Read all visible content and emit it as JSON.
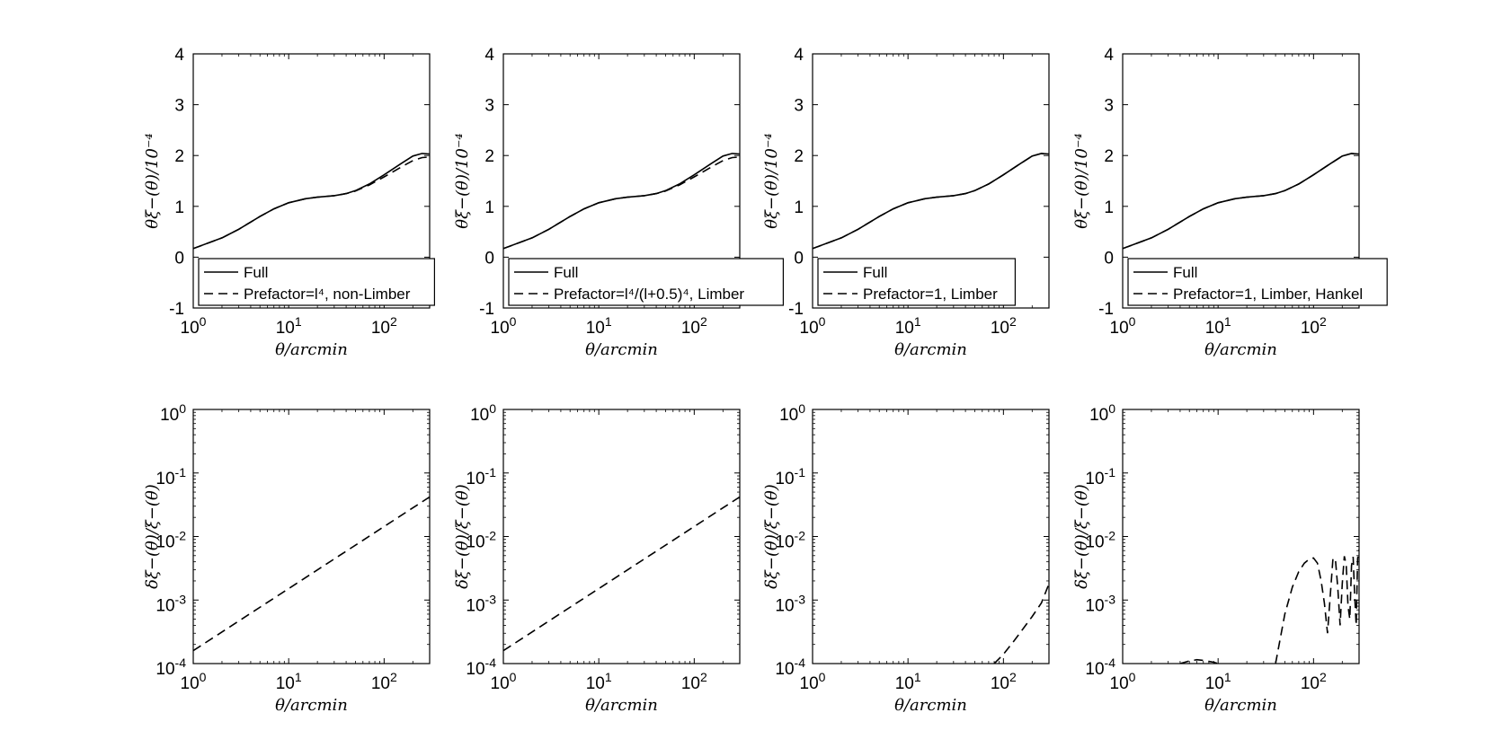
{
  "chart_data": [
    {
      "type": "line",
      "panel": "top-1",
      "xlabel": "θ/arcmin",
      "ylabel": "θξ−(θ)/10⁻⁴",
      "xscale": "log",
      "xlim": [
        1,
        300
      ],
      "ylim": [
        -1,
        4
      ],
      "x_ticks": [
        "10^0",
        "10^1",
        "10^2"
      ],
      "y_ticks": [
        "-1",
        "0",
        "1",
        "2",
        "3",
        "4"
      ],
      "legend_position": "bottom",
      "x": [
        1,
        2,
        3,
        5,
        7,
        10,
        15,
        20,
        30,
        40,
        50,
        70,
        100,
        150,
        200,
        250,
        300
      ],
      "series": [
        {
          "name": "Full",
          "style": "solid",
          "values": [
            0.17,
            0.38,
            0.55,
            0.8,
            0.95,
            1.07,
            1.15,
            1.18,
            1.21,
            1.25,
            1.31,
            1.44,
            1.62,
            1.84,
            1.99,
            2.04,
            2.03
          ]
        },
        {
          "name": "Prefactor=l⁴, non-Limber",
          "style": "dashed",
          "values": [
            0.17,
            0.38,
            0.55,
            0.8,
            0.95,
            1.07,
            1.15,
            1.18,
            1.21,
            1.25,
            1.3,
            1.42,
            1.58,
            1.77,
            1.9,
            1.96,
            1.97
          ]
        }
      ]
    },
    {
      "type": "line",
      "panel": "top-2",
      "xlabel": "θ/arcmin",
      "ylabel": "θξ−(θ)/10⁻⁴",
      "xscale": "log",
      "xlim": [
        1,
        300
      ],
      "ylim": [
        -1,
        4
      ],
      "x_ticks": [
        "10^0",
        "10^1",
        "10^2"
      ],
      "y_ticks": [
        "-1",
        "0",
        "1",
        "2",
        "3",
        "4"
      ],
      "legend_position": "bottom",
      "x": [
        1,
        2,
        3,
        5,
        7,
        10,
        15,
        20,
        30,
        40,
        50,
        70,
        100,
        150,
        200,
        250,
        300
      ],
      "series": [
        {
          "name": "Full",
          "style": "solid",
          "values": [
            0.17,
            0.38,
            0.55,
            0.8,
            0.95,
            1.07,
            1.15,
            1.18,
            1.21,
            1.25,
            1.31,
            1.44,
            1.62,
            1.84,
            1.99,
            2.04,
            2.03
          ]
        },
        {
          "name": "Prefactor=l⁴/(l+0.5)⁴, Limber",
          "style": "dashed",
          "values": [
            0.17,
            0.38,
            0.55,
            0.8,
            0.95,
            1.07,
            1.15,
            1.18,
            1.21,
            1.25,
            1.3,
            1.42,
            1.58,
            1.77,
            1.9,
            1.96,
            1.97
          ]
        }
      ]
    },
    {
      "type": "line",
      "panel": "top-3",
      "xlabel": "θ/arcmin",
      "ylabel": "θξ−(θ)/10⁻⁴",
      "xscale": "log",
      "xlim": [
        1,
        300
      ],
      "ylim": [
        -1,
        4
      ],
      "x_ticks": [
        "10^0",
        "10^1",
        "10^2"
      ],
      "y_ticks": [
        "-1",
        "0",
        "1",
        "2",
        "3",
        "4"
      ],
      "legend_position": "bottom",
      "x": [
        1,
        2,
        3,
        5,
        7,
        10,
        15,
        20,
        30,
        40,
        50,
        70,
        100,
        150,
        200,
        250,
        300
      ],
      "series": [
        {
          "name": "Full",
          "style": "solid",
          "values": [
            0.17,
            0.38,
            0.55,
            0.8,
            0.95,
            1.07,
            1.15,
            1.18,
            1.21,
            1.25,
            1.31,
            1.44,
            1.62,
            1.84,
            1.99,
            2.04,
            2.03
          ]
        },
        {
          "name": "Prefactor=1, Limber",
          "style": "dashed",
          "values": [
            0.17,
            0.38,
            0.55,
            0.8,
            0.95,
            1.07,
            1.15,
            1.18,
            1.21,
            1.25,
            1.31,
            1.44,
            1.62,
            1.84,
            1.99,
            2.04,
            2.02
          ]
        }
      ]
    },
    {
      "type": "line",
      "panel": "top-4",
      "xlabel": "θ/arcmin",
      "ylabel": "θξ−(θ)/10⁻⁴",
      "xscale": "log",
      "xlim": [
        1,
        300
      ],
      "ylim": [
        -1,
        4
      ],
      "x_ticks": [
        "10^0",
        "10^1",
        "10^2"
      ],
      "y_ticks": [
        "-1",
        "0",
        "1",
        "2",
        "3",
        "4"
      ],
      "legend_position": "bottom",
      "x": [
        1,
        2,
        3,
        5,
        7,
        10,
        15,
        20,
        30,
        40,
        50,
        70,
        100,
        150,
        200,
        250,
        300
      ],
      "series": [
        {
          "name": "Full",
          "style": "solid",
          "values": [
            0.17,
            0.38,
            0.55,
            0.8,
            0.95,
            1.07,
            1.15,
            1.18,
            1.21,
            1.25,
            1.31,
            1.44,
            1.62,
            1.84,
            1.99,
            2.04,
            2.03
          ]
        },
        {
          "name": "Prefactor=1, Limber, Hankel",
          "style": "dashed",
          "values": [
            0.17,
            0.38,
            0.55,
            0.8,
            0.95,
            1.07,
            1.15,
            1.18,
            1.21,
            1.25,
            1.31,
            1.44,
            1.62,
            1.84,
            1.99,
            2.04,
            2.02
          ]
        }
      ]
    },
    {
      "type": "line",
      "panel": "bottom-1",
      "xlabel": "θ/arcmin",
      "ylabel": "δξ−(θ)/ξ−(θ)",
      "xscale": "log",
      "yscale": "log",
      "xlim": [
        1,
        300
      ],
      "ylim": [
        0.0001,
        1
      ],
      "x_ticks": [
        "10^0",
        "10^1",
        "10^2"
      ],
      "y_ticks": [
        "10^-4",
        "10^-3",
        "10^-2",
        "10^-1",
        "10^0"
      ],
      "series": [
        {
          "style": "dashed",
          "x": [
            1,
            300
          ],
          "values": [
            0.00016,
            0.042
          ]
        }
      ]
    },
    {
      "type": "line",
      "panel": "bottom-2",
      "xlabel": "θ/arcmin",
      "ylabel": "δξ−(θ)/ξ−(θ)",
      "xscale": "log",
      "yscale": "log",
      "xlim": [
        1,
        300
      ],
      "ylim": [
        0.0001,
        1
      ],
      "x_ticks": [
        "10^0",
        "10^1",
        "10^2"
      ],
      "y_ticks": [
        "10^-4",
        "10^-3",
        "10^-2",
        "10^-1",
        "10^0"
      ],
      "series": [
        {
          "style": "dashed",
          "x": [
            1,
            300
          ],
          "values": [
            0.00016,
            0.042
          ]
        }
      ]
    },
    {
      "type": "line",
      "panel": "bottom-3",
      "xlabel": "θ/arcmin",
      "ylabel": "δξ−(θ)/ξ−(θ)",
      "xscale": "log",
      "yscale": "log",
      "xlim": [
        1,
        300
      ],
      "ylim": [
        0.0001,
        1
      ],
      "x_ticks": [
        "10^0",
        "10^1",
        "10^2"
      ],
      "y_ticks": [
        "10^-4",
        "10^-3",
        "10^-2",
        "10^-1",
        "10^0"
      ],
      "series": [
        {
          "style": "dashed",
          "x": [
            80,
            100,
            130,
            160,
            200,
            250,
            300
          ],
          "values": [
            0.0001,
            0.00014,
            0.00023,
            0.00035,
            0.00055,
            0.0009,
            0.0018
          ]
        }
      ]
    },
    {
      "type": "line",
      "panel": "bottom-4",
      "xlabel": "θ/arcmin",
      "ylabel": "δξ−(θ)/ξ−(θ)",
      "xscale": "log",
      "yscale": "log",
      "xlim": [
        1,
        300
      ],
      "ylim": [
        0.0001,
        1
      ],
      "x_ticks": [
        "10^0",
        "10^1",
        "10^2"
      ],
      "y_ticks": [
        "10^-4",
        "10^-3",
        "10^-2",
        "10^-1",
        "10^0"
      ],
      "series": [
        {
          "style": "dashed",
          "x": [
            4,
            5,
            6,
            7,
            8,
            9,
            10
          ],
          "values": [
            0.0001,
            0.00011,
            0.000115,
            0.000112,
            0.000108,
            0.000105,
            0.0001
          ]
        },
        {
          "style": "dashed",
          "x": [
            40,
            50,
            60,
            70,
            80,
            90,
            100,
            110,
            120,
            130,
            140,
            150,
            160,
            170,
            180,
            190,
            200,
            210,
            220,
            230,
            240,
            250,
            260,
            270,
            280,
            290,
            300
          ],
          "values": [
            0.0001,
            0.0006,
            0.0016,
            0.0028,
            0.0038,
            0.0044,
            0.0046,
            0.0038,
            0.002,
            0.0009,
            0.0003,
            0.0012,
            0.0046,
            0.0042,
            0.0015,
            0.0004,
            0.0018,
            0.0049,
            0.0036,
            0.0008,
            0.0005,
            0.0035,
            0.0048,
            0.0012,
            0.0004,
            0.0045,
            0.0062
          ]
        }
      ]
    }
  ]
}
